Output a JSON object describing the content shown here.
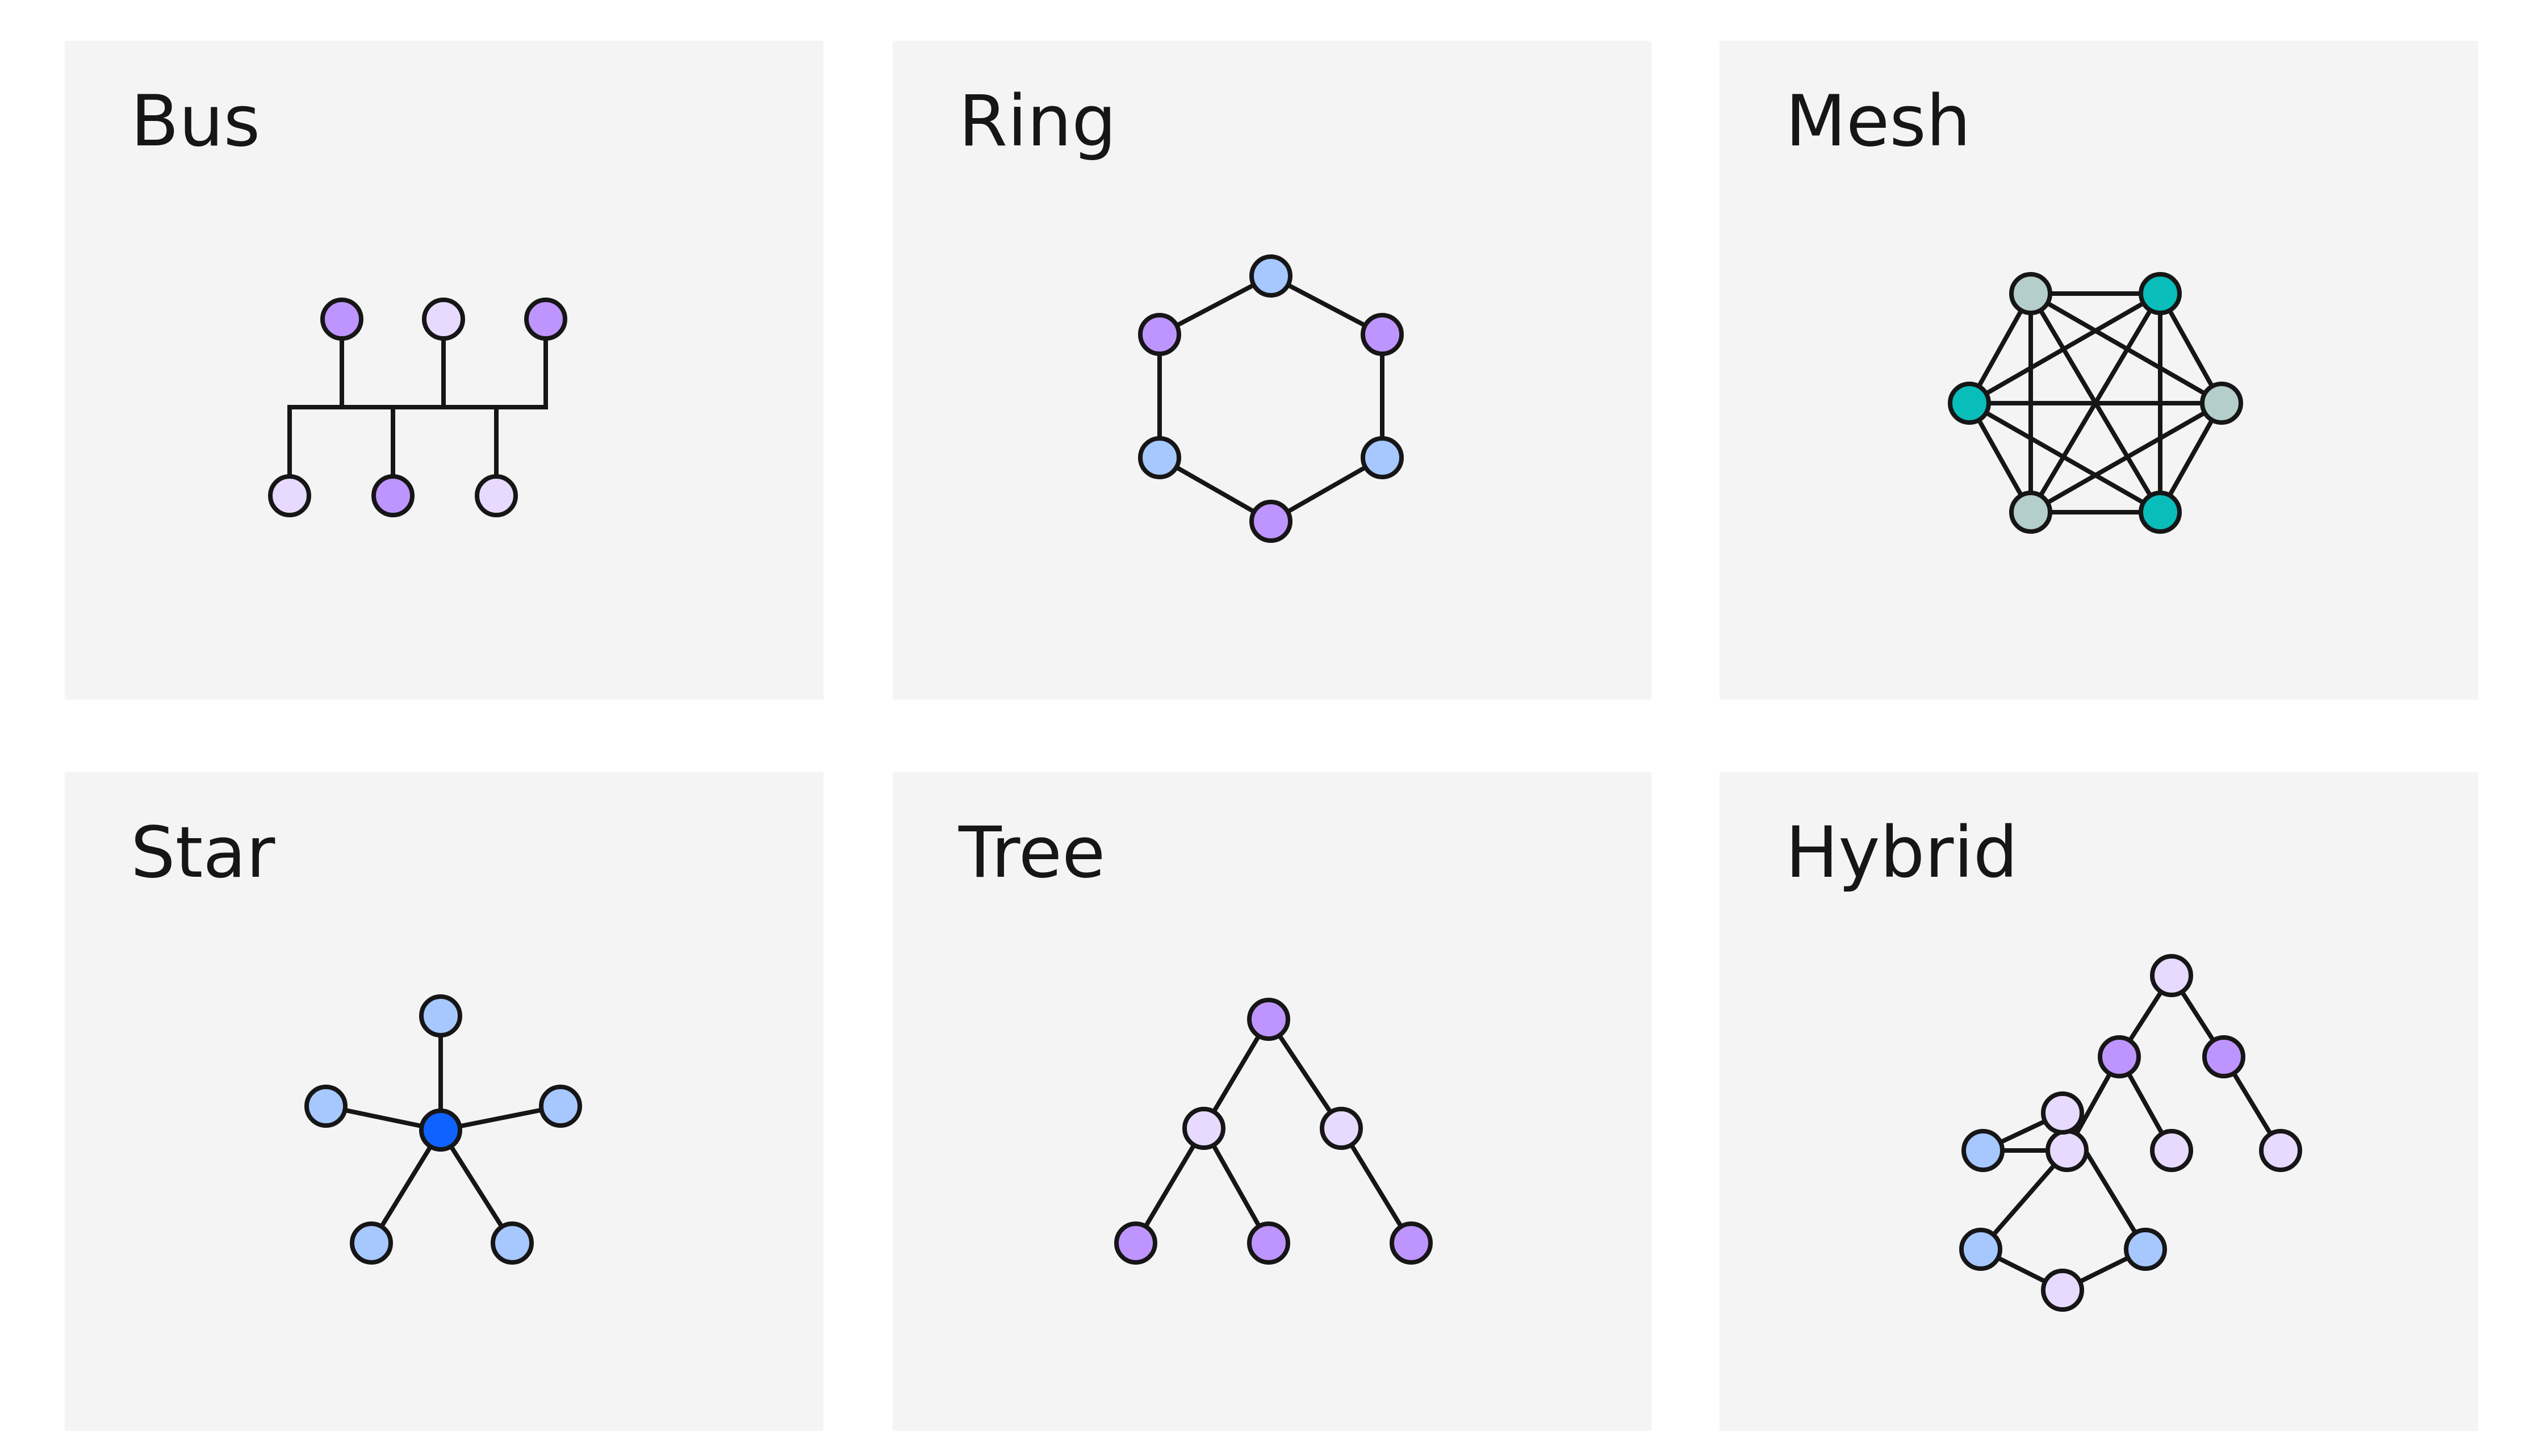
{
  "colors": {
    "card_bg": "#f4f4f4",
    "stroke": "#161616",
    "purple": "#be95ff",
    "lavender": "#e8daff",
    "blue_light": "#a6c8ff",
    "blue": "#0f62fe",
    "teal": "#08bdba",
    "gray_teal": "#b3cecb"
  },
  "cards": [
    {
      "id": "bus",
      "title": "Bus",
      "nodes": [
        {
          "id": 0,
          "color": "purple"
        },
        {
          "id": 1,
          "color": "lavender"
        },
        {
          "id": 2,
          "color": "purple"
        },
        {
          "id": 3,
          "color": "lavender"
        },
        {
          "id": 4,
          "color": "purple"
        },
        {
          "id": 5,
          "color": "lavender"
        }
      ]
    },
    {
      "id": "ring",
      "title": "Ring",
      "nodes": [
        {
          "id": 0,
          "color": "blue_light"
        },
        {
          "id": 1,
          "color": "purple"
        },
        {
          "id": 2,
          "color": "purple"
        },
        {
          "id": 3,
          "color": "blue_light"
        },
        {
          "id": 4,
          "color": "blue_light"
        },
        {
          "id": 5,
          "color": "purple"
        }
      ],
      "edges": [
        [
          0,
          1
        ],
        [
          0,
          2
        ],
        [
          1,
          3
        ],
        [
          2,
          4
        ],
        [
          3,
          5
        ],
        [
          4,
          5
        ]
      ]
    },
    {
      "id": "mesh",
      "title": "Mesh",
      "nodes": [
        {
          "id": 0,
          "color": "gray_teal"
        },
        {
          "id": 1,
          "color": "teal"
        },
        {
          "id": 2,
          "color": "teal"
        },
        {
          "id": 3,
          "color": "gray_teal"
        },
        {
          "id": 4,
          "color": "gray_teal"
        },
        {
          "id": 5,
          "color": "teal"
        }
      ],
      "edges": [
        [
          0,
          1
        ],
        [
          0,
          2
        ],
        [
          0,
          3
        ],
        [
          0,
          4
        ],
        [
          0,
          5
        ],
        [
          1,
          2
        ],
        [
          1,
          3
        ],
        [
          1,
          4
        ],
        [
          1,
          5
        ],
        [
          2,
          3
        ],
        [
          2,
          4
        ],
        [
          2,
          5
        ],
        [
          3,
          4
        ],
        [
          3,
          5
        ],
        [
          4,
          5
        ]
      ]
    },
    {
      "id": "star",
      "title": "Star",
      "nodes": [
        {
          "id": 0,
          "color": "blue"
        },
        {
          "id": 1,
          "color": "blue_light"
        },
        {
          "id": 2,
          "color": "blue_light"
        },
        {
          "id": 3,
          "color": "blue_light"
        },
        {
          "id": 4,
          "color": "blue_light"
        },
        {
          "id": 5,
          "color": "blue_light"
        }
      ],
      "edges": [
        [
          0,
          1
        ],
        [
          0,
          2
        ],
        [
          0,
          3
        ],
        [
          0,
          4
        ],
        [
          0,
          5
        ]
      ]
    },
    {
      "id": "tree",
      "title": "Tree",
      "nodes": [
        {
          "id": 0,
          "color": "purple"
        },
        {
          "id": 1,
          "color": "lavender"
        },
        {
          "id": 2,
          "color": "lavender"
        },
        {
          "id": 3,
          "color": "purple"
        },
        {
          "id": 4,
          "color": "purple"
        },
        {
          "id": 5,
          "color": "purple"
        }
      ],
      "edges": [
        [
          0,
          1
        ],
        [
          0,
          2
        ],
        [
          1,
          3
        ],
        [
          1,
          4
        ],
        [
          2,
          5
        ]
      ]
    },
    {
      "id": "hybrid",
      "title": "Hybrid",
      "nodes": [
        {
          "id": 0,
          "color": "lavender"
        },
        {
          "id": 1,
          "color": "purple"
        },
        {
          "id": 2,
          "color": "purple"
        },
        {
          "id": 3,
          "color": "lavender"
        },
        {
          "id": 4,
          "color": "lavender"
        },
        {
          "id": 5,
          "color": "lavender"
        },
        {
          "id": 6,
          "color": "blue_light"
        },
        {
          "id": 7,
          "color": "lavender"
        },
        {
          "id": 8,
          "color": "blue_light"
        },
        {
          "id": 9,
          "color": "blue_light"
        },
        {
          "id": 10,
          "color": "lavender"
        }
      ],
      "edges": [
        [
          0,
          1
        ],
        [
          0,
          2
        ],
        [
          1,
          3
        ],
        [
          1,
          4
        ],
        [
          2,
          5
        ],
        [
          3,
          6
        ],
        [
          6,
          7
        ],
        [
          7,
          8
        ],
        [
          8,
          10
        ],
        [
          10,
          9
        ],
        [
          9,
          3
        ]
      ]
    }
  ]
}
